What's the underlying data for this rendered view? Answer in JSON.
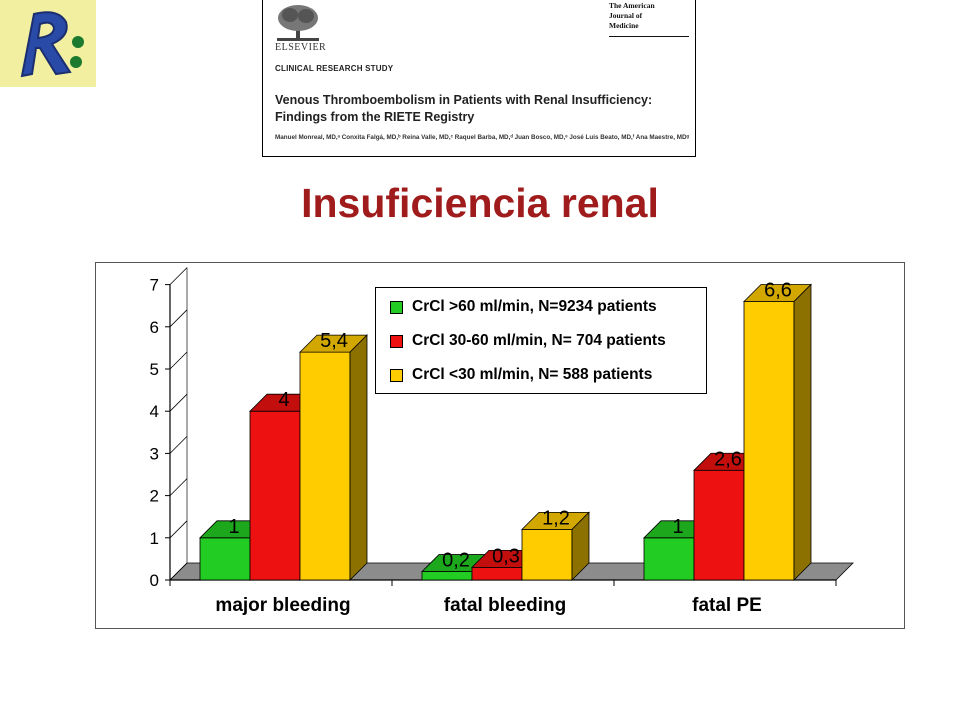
{
  "logo": {
    "letter": "R",
    "colors": {
      "bg": "#f2f0a0",
      "letter": "#2a4aa8",
      "dot": "#1b7a2e"
    }
  },
  "journal_header": {
    "publisher": "ELSEVIER",
    "journal_name": [
      "The American",
      "Journal of",
      "Medicine"
    ],
    "section": "CLINICAL RESEARCH STUDY",
    "title": "Venous Thromboembolism in Patients with Renal Insufficiency: Findings from the RIETE Registry",
    "authors": "Manuel Monreal, MD,ᵃ Conxita Falgá, MD,ᵇ Reina Valle, MD,ᶜ Raquel Barba, MD,ᵈ Juan Bosco, MD,ᵉ José Luis Beato, MD,ᶠ Ana Maestre, MDᵍ"
  },
  "slide_title": "Insuficiencia renal",
  "chart_data": {
    "type": "bar",
    "categories": [
      "major bleeding",
      "fatal bleeding",
      "fatal PE"
    ],
    "series": [
      {
        "name": "CrCl >60 ml/min, N=9234 patients",
        "values": [
          1,
          0.2,
          1
        ],
        "labels": [
          "1",
          "0,2",
          "1"
        ],
        "color": "#22cc22"
      },
      {
        "name": "CrCl 30-60 ml/min, N= 704 patients",
        "values": [
          4,
          0.3,
          2.6
        ],
        "labels": [
          "4",
          "0,3",
          "2,6"
        ],
        "color": "#ee1111"
      },
      {
        "name": "CrCl <30 ml/min, N= 588 patients",
        "values": [
          5.4,
          1.2,
          6.6
        ],
        "labels": [
          "5,4",
          "1,2",
          "6,6"
        ],
        "color": "#ffcc00"
      }
    ],
    "yticks": [
      "0",
      "1",
      "2",
      "3",
      "4",
      "5",
      "6",
      "7"
    ],
    "ylim": [
      0,
      7
    ],
    "legend_position": "top-center",
    "grid": false,
    "style": "3d"
  }
}
